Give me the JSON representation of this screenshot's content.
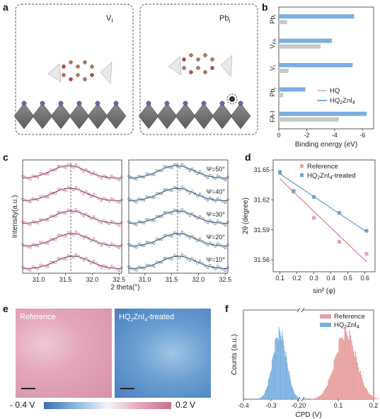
{
  "panels": {
    "a": {
      "letter": "a",
      "left_label": "V",
      "left_sub": "I",
      "right_label": "Pb",
      "right_sub": "i"
    },
    "b": {
      "letter": "b"
    },
    "c": {
      "letter": "c"
    },
    "d": {
      "letter": "d"
    },
    "e": {
      "letter": "e",
      "left_label": "Reference",
      "right_label_prefix": "HQ",
      "right_label_sub1": "2",
      "right_label_mid": "ZnI",
      "right_label_sub2": "4",
      "right_label_suffix": "-treated",
      "cbar_min": "- 0.4 V",
      "cbar_max": "0.2 V"
    },
    "f": {
      "letter": "f"
    }
  },
  "chart_data": [
    {
      "id": "b",
      "type": "bar",
      "orientation": "horizontal",
      "categories": [
        "Pb_I",
        "V_FA",
        "V_I",
        "Pb_i",
        "FA-I"
      ],
      "category_labels": [
        {
          "main": "Pb",
          "sub": "I"
        },
        {
          "main": "V",
          "sub": "FA"
        },
        {
          "main": "V",
          "sub": "I"
        },
        {
          "main": "Pb",
          "sub": "i"
        },
        {
          "main": "FA-I",
          "sub": ""
        }
      ],
      "series": [
        {
          "name": "HQ",
          "color": "#c8c8c8",
          "values": [
            -0.6,
            -3.0,
            -0.7,
            -0.3,
            -4.3
          ]
        },
        {
          "name": "HQ2ZnI4",
          "color": "#7aaee0",
          "values": [
            -5.4,
            -3.8,
            -5.3,
            -1.9,
            -6.3
          ]
        }
      ],
      "legend": [
        {
          "main": "HQ",
          "sub": "",
          "tail": ""
        },
        {
          "main": "HQ",
          "sub": "2",
          "tail": "ZnI",
          "sub2": "4"
        }
      ],
      "xlabel": "Binding energy (eV)",
      "xticks": [
        "0",
        "-2",
        "-4",
        "-6"
      ],
      "xlim": [
        0,
        -6.8
      ],
      "legend_position": "bottom-right"
    },
    {
      "id": "c-left",
      "type": "scatter",
      "xlabel": "2 theta(°)",
      "ylabel": "Intensity(a.u.)",
      "xticks": [
        "31.0",
        "31.5",
        "32.0",
        "32.5"
      ],
      "xlim": [
        30.7,
        32.55
      ],
      "peak_centers": [
        31.56,
        31.58,
        31.6,
        31.62,
        31.64
      ],
      "color": "#d4708a"
    },
    {
      "id": "c-right",
      "type": "scatter",
      "xticks": [
        "31.0",
        "31.5",
        "32.0",
        "32.5"
      ],
      "xlim": [
        30.7,
        32.55
      ],
      "curve_labels": [
        "Ψ=50°",
        "Ψ=40°",
        "Ψ=30°",
        "Ψ=20°",
        "Ψ=10°"
      ],
      "peak_centers": [
        31.59,
        31.6,
        31.61,
        31.62,
        31.63
      ],
      "color": "#5a86b8"
    },
    {
      "id": "d",
      "type": "scatter",
      "xlabel": "sin² (φ)",
      "ylabel": "2θ (degree)",
      "xticks": [
        "0.1",
        "0.2",
        "0.3",
        "0.4",
        "0.5",
        "0.6"
      ],
      "yticks": [
        "31.56",
        "31.59",
        "31.62",
        "31.65"
      ],
      "xlim": [
        0.06,
        0.66
      ],
      "ylim": [
        31.548,
        31.66
      ],
      "series": [
        {
          "name": "Reference",
          "color": "#e8a0a8",
          "line_color": "#e06070",
          "x": [
            0.1,
            0.18,
            0.3,
            0.45,
            0.61
          ],
          "y": [
            31.647,
            31.628,
            31.602,
            31.578,
            31.566
          ],
          "fit": [
            [
              0.1,
              31.641
            ],
            [
              0.61,
              31.558
            ]
          ]
        },
        {
          "name": "HQ2ZnI4-treated",
          "color": "#6f9fd0",
          "line_color": "#3a8ab0",
          "x": [
            0.1,
            0.18,
            0.3,
            0.45,
            0.61
          ],
          "y": [
            31.648,
            31.629,
            31.623,
            31.607,
            31.589
          ],
          "fit": [
            [
              0.1,
              31.646
            ],
            [
              0.61,
              31.588
            ]
          ]
        }
      ],
      "legend": [
        {
          "main": "Reference",
          "sub": "",
          "tail": ""
        },
        {
          "main": "HQ",
          "sub": "2",
          "tail": "ZnI",
          "sub2": "4",
          "tail2": "-treated"
        }
      ],
      "legend_position": "top-right"
    },
    {
      "id": "f",
      "type": "histogram",
      "xlabel": "CPD (V)",
      "ylabel": "Counts (a.u.)",
      "xticks": [
        "-0.4",
        "-0.3",
        "-0.20",
        "0.1",
        "0.2"
      ],
      "series": [
        {
          "name": "Reference",
          "color": "#e8a0a0",
          "center": 0.12,
          "width": 0.03
        },
        {
          "name": "HQ2ZnI4",
          "color": "#7aaee0",
          "center": -0.27,
          "width": 0.025
        }
      ],
      "legend": [
        {
          "main": "Reference",
          "sub": "",
          "tail": ""
        },
        {
          "main": "HQ",
          "sub": "2",
          "tail": "ZnI",
          "sub2": "4"
        }
      ],
      "legend_position": "top-right",
      "axis_break": true
    }
  ]
}
